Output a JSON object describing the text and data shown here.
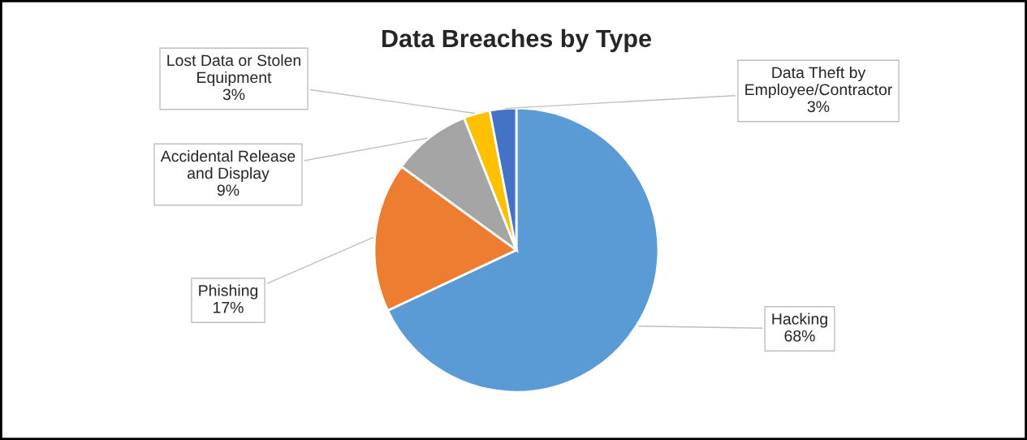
{
  "chart_data": {
    "type": "pie",
    "title": "Data Breaches by Type",
    "categories": [
      "Hacking",
      "Phishing",
      "Accidental Release\nand Display",
      "Lost Data or Stolen\nEquipment",
      "Data Theft by\nEmployee/Contractor"
    ],
    "values": [
      68,
      17,
      9,
      3,
      3
    ],
    "value_labels": [
      "68%",
      "17%",
      "9%",
      "3%",
      "3%"
    ],
    "colors": [
      "#5b9bd5",
      "#ed7d31",
      "#a5a5a5",
      "#ffc000",
      "#4472c4"
    ],
    "legend": false
  }
}
